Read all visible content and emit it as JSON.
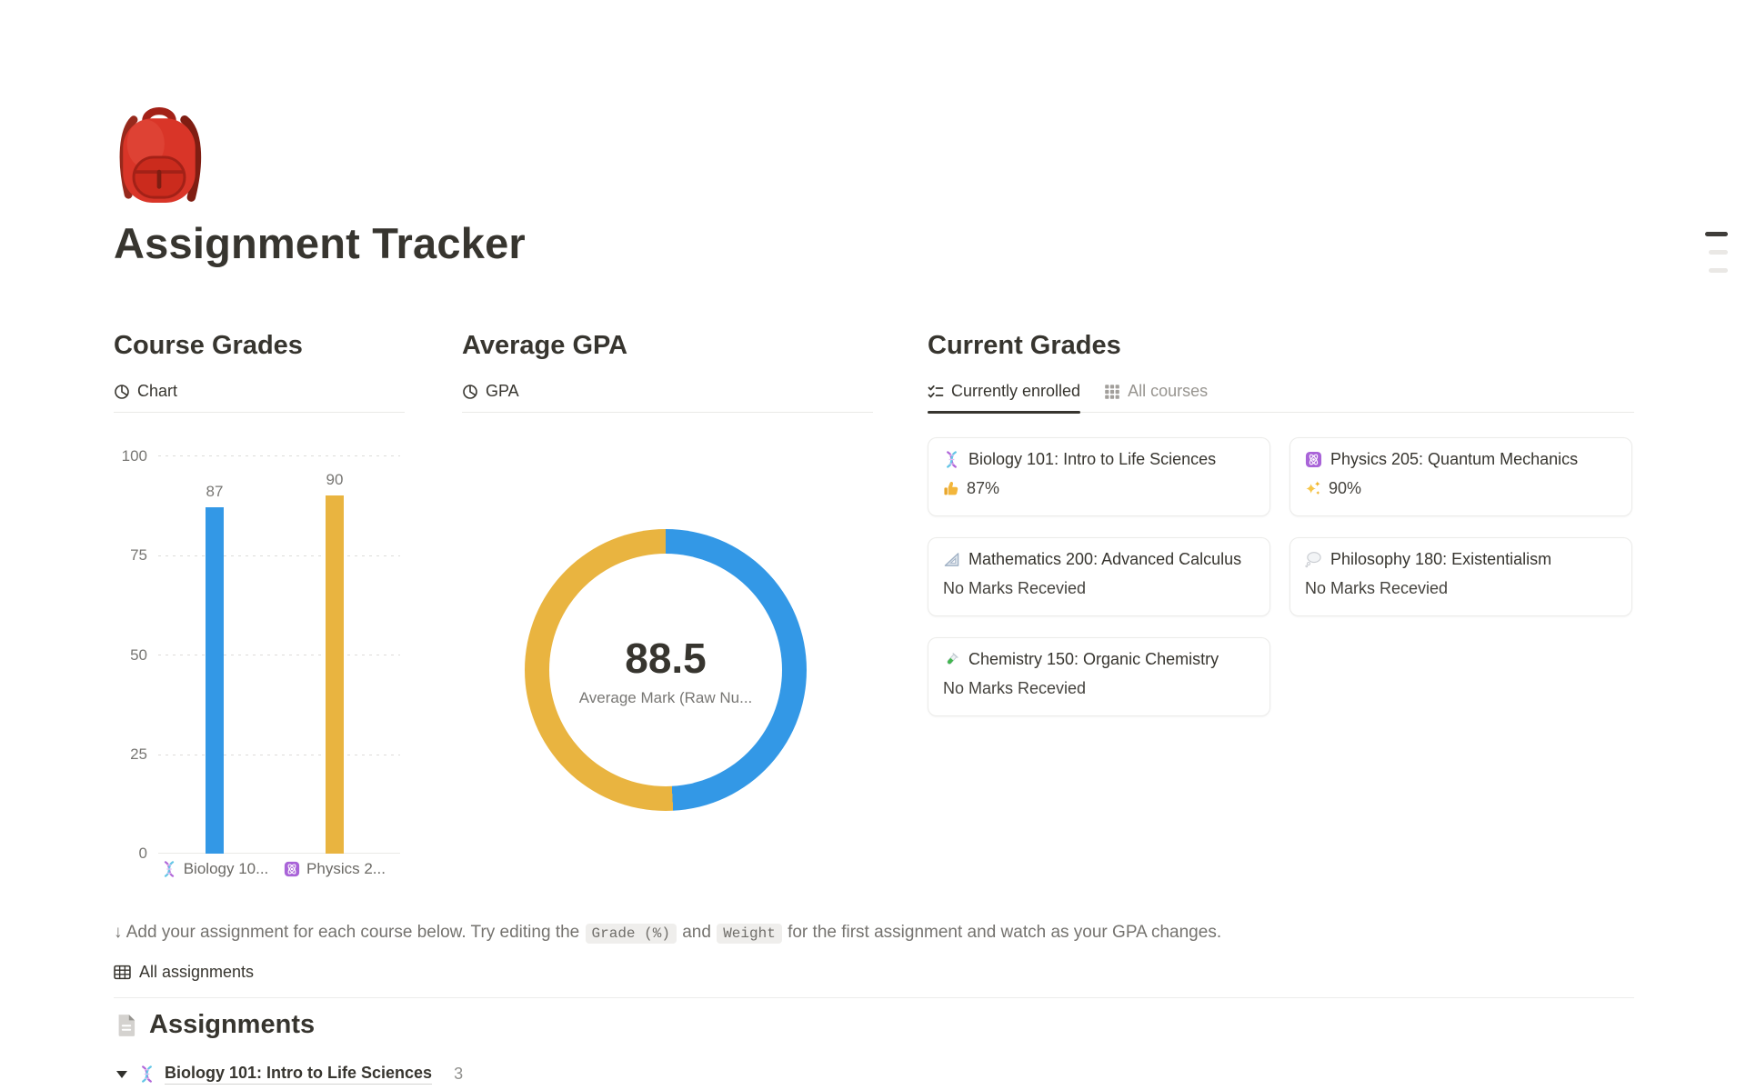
{
  "page": {
    "icon": "red-backpack",
    "title": "Assignment Tracker"
  },
  "course_grades": {
    "heading": "Course Grades",
    "tab_label": "Chart",
    "chart": {
      "type": "bar",
      "categories": [
        {
          "icon": "dna-emoji",
          "label": "Biology 10..."
        },
        {
          "icon": "atom-emoji",
          "label": "Physics 2..."
        }
      ],
      "values": [
        87,
        90
      ],
      "colors": [
        "#3398e6",
        "#e9b440"
      ],
      "ylim": [
        0,
        100
      ],
      "yticks": [
        "100",
        "75",
        "50",
        "25",
        "0"
      ]
    }
  },
  "average_gpa": {
    "heading": "Average GPA",
    "tab_label": "GPA",
    "chart": {
      "type": "donut",
      "center_value": "88.5",
      "center_label": "Average Mark (Raw Nu...",
      "segments": [
        {
          "name": "Biology 101",
          "value": 87,
          "color": "#3398e6"
        },
        {
          "name": "Physics 205",
          "value": 90,
          "color": "#e9b440"
        }
      ]
    }
  },
  "current_grades": {
    "heading": "Current Grades",
    "tabs": [
      {
        "label": "Currently enrolled",
        "icon": "checklist-icon",
        "active": true
      },
      {
        "label": "All courses",
        "icon": "grid-icon",
        "active": false
      }
    ],
    "cards": [
      {
        "icon": "dna-emoji",
        "title": "Biology 101: Intro to Life Sciences",
        "value_icon": "thumbs-up-emoji",
        "value": "87%"
      },
      {
        "icon": "atom-emoji",
        "title": "Physics 205: Quantum Mechanics",
        "value_icon": "sparkles-emoji",
        "value": "90%"
      },
      {
        "icon": "triangle-ruler-emoji",
        "title": "Mathematics 200: Advanced Calculus",
        "value": "No Marks Recevied"
      },
      {
        "icon": "thought-balloon-emoji",
        "title": "Philosophy 180: Existentialism",
        "value": "No Marks Recevied"
      },
      {
        "icon": "test-tube-emoji",
        "title": "Chemistry 150: Organic Chemistry",
        "value": "No Marks Recevied"
      }
    ]
  },
  "instruction": {
    "prefix": "↓ Add your assignment for each course below. Try editing the ",
    "code1": "Grade (%)",
    "and_text": " and ",
    "code2": "Weight",
    "suffix": " for the first assignment and watch as your GPA changes."
  },
  "all_assignments": {
    "label": "All assignments"
  },
  "assignments": {
    "heading": "Assignments",
    "groups": [
      {
        "icon": "dna-emoji",
        "title": "Biology 101: Intro to Life Sciences",
        "count": "3",
        "expanded": true
      }
    ]
  }
}
